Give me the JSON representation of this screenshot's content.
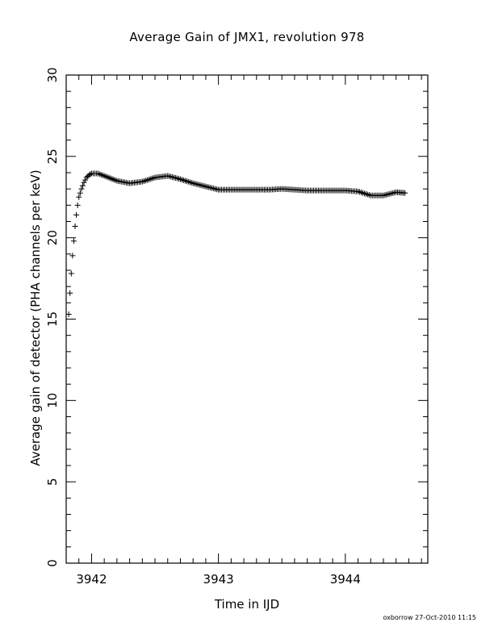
{
  "chart_data": {
    "type": "scatter",
    "title": "Average Gain of JMX1, revolution 978",
    "xlabel": "Time in IJD",
    "ylabel": "Average gain of detector (PHA channels per keV)",
    "xlim": [
      3941.8,
      3944.65
    ],
    "ylim": [
      0,
      30
    ],
    "x_ticks": [
      3942,
      3943,
      3944
    ],
    "y_ticks": [
      0,
      5,
      10,
      15,
      20,
      25,
      30
    ],
    "marker": "+",
    "color": "#000000",
    "grid": false,
    "series": [
      {
        "x": [
          3941.82,
          3941.83,
          3941.84,
          3941.85,
          3941.86,
          3941.87,
          3941.88,
          3941.89,
          3941.9,
          3941.92,
          3941.94,
          3941.96,
          3941.98,
          3942.0,
          3942.05,
          3942.1,
          3942.2,
          3942.3,
          3942.4,
          3942.5,
          3942.6,
          3942.7,
          3942.8,
          3942.9,
          3943.0,
          3943.1,
          3943.2,
          3943.3,
          3943.4,
          3943.5,
          3943.6,
          3943.7,
          3943.8,
          3943.9,
          3944.0,
          3944.1,
          3944.2,
          3944.3,
          3944.4,
          3944.47
        ],
        "y": [
          15.3,
          16.6,
          17.8,
          18.9,
          19.8,
          20.7,
          21.4,
          22.0,
          22.5,
          23.0,
          23.4,
          23.7,
          23.85,
          23.95,
          23.95,
          23.8,
          23.5,
          23.35,
          23.45,
          23.7,
          23.8,
          23.6,
          23.35,
          23.15,
          22.95,
          22.95,
          22.95,
          22.95,
          22.95,
          23.0,
          22.95,
          22.9,
          22.9,
          22.9,
          22.9,
          22.85,
          22.6,
          22.6,
          22.8,
          22.75
        ]
      }
    ]
  },
  "footer": "oxborrow 27-Oct-2010 11:15"
}
